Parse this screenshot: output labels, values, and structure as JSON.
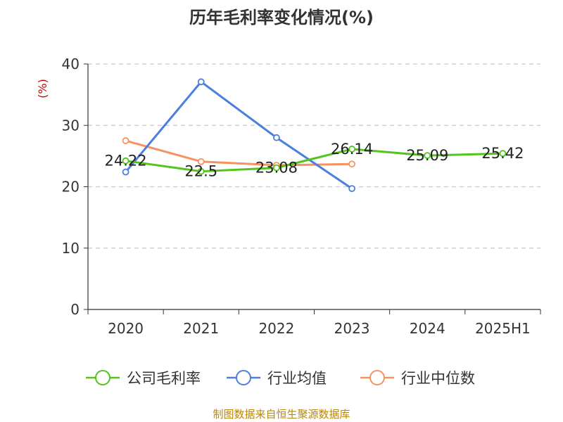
{
  "chart_data": {
    "type": "line",
    "title": "历年毛利率变化情况(%)",
    "ylabel": "(%)",
    "categories": [
      "2020",
      "2021",
      "2022",
      "2023",
      "2024",
      "2025H1"
    ],
    "ylim": [
      0,
      40
    ],
    "yticks": [
      0,
      10,
      20,
      30,
      40
    ],
    "grid": true,
    "legend_position": "bottom",
    "series": [
      {
        "name": "公司毛利率",
        "color": "#52c41a",
        "values": [
          24.22,
          22.5,
          23.08,
          26.14,
          25.09,
          25.42
        ],
        "labels": [
          "24.22",
          "22.5",
          "23.08",
          "26.14",
          "25.09",
          "25.42"
        ]
      },
      {
        "name": "行业均值",
        "color": "#4a7fdc",
        "values": [
          22.4,
          37.1,
          28.0,
          19.7,
          null,
          null
        ]
      },
      {
        "name": "行业中位数",
        "color": "#f59360",
        "values": [
          27.5,
          24.1,
          23.5,
          23.7,
          null,
          null
        ]
      }
    ],
    "source": "制图数据来自恒生聚源数据库"
  }
}
